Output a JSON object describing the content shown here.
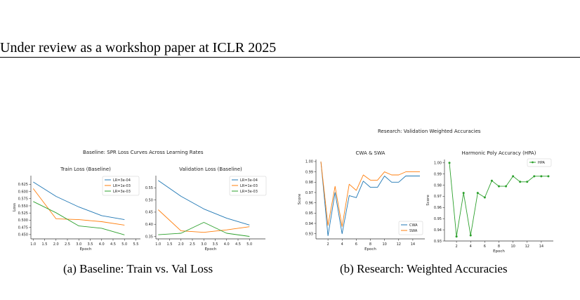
{
  "header": {
    "title": "Under review as a workshop paper at ICLR 2025"
  },
  "figures": {
    "a": {
      "suptitle": "Baseline: SPR Loss Curves Across Learning Rates",
      "caption": "(a)  Baseline: Train vs. Val Loss"
    },
    "b": {
      "suptitle": "Research: Validation Weighted Accuracies",
      "caption": "(b)  Research: Weighted Accuracies"
    }
  },
  "chart_data": [
    {
      "id": "train-loss",
      "type": "line",
      "title": "Train Loss (Baseline)",
      "xlabel": "Epoch",
      "ylabel": "Loss",
      "xlim": [
        0.9,
        5.7
      ],
      "ylim": [
        0.435,
        0.655
      ],
      "xticks": [
        1.0,
        1.5,
        2.0,
        2.5,
        3.0,
        3.5,
        4.0,
        4.5,
        5.0,
        5.5
      ],
      "xtick_labels": [
        "1.0",
        "1.5",
        "2.0",
        "2.5",
        "3.0",
        "3.5",
        "4.0",
        "4.5",
        "5.0",
        "5.5"
      ],
      "yticks": [
        0.45,
        0.475,
        0.5,
        0.525,
        0.55,
        0.575,
        0.6,
        0.625
      ],
      "ytick_labels": [
        "0.450",
        "0.475",
        "0.500",
        "0.525",
        "0.550",
        "0.575",
        "0.600",
        "0.625"
      ],
      "legend": "top-right",
      "grid": false,
      "series": [
        {
          "name": "LR=3e-04",
          "color": "#1f77b4",
          "x": [
            1,
            2,
            3,
            4,
            5
          ],
          "y": [
            0.633,
            0.583,
            0.546,
            0.516,
            0.502
          ]
        },
        {
          "name": "LR=1e-03",
          "color": "#ff7f0e",
          "x": [
            1,
            2,
            3,
            4,
            5
          ],
          "y": [
            0.61,
            0.505,
            0.502,
            0.495,
            0.483
          ]
        },
        {
          "name": "LR=3e-03",
          "color": "#2ca02c",
          "x": [
            1,
            2,
            3,
            4,
            5
          ],
          "y": [
            0.565,
            0.526,
            0.48,
            0.472,
            0.449
          ]
        }
      ]
    },
    {
      "id": "val-loss",
      "type": "line",
      "title": "Validation Loss (Baseline)",
      "xlabel": "Epoch",
      "ylabel": "Loss",
      "xlim": [
        0.9,
        5.7
      ],
      "ylim": [
        0.34,
        0.6
      ],
      "xticks": [
        1.0,
        1.5,
        2.0,
        2.5,
        3.0,
        3.5,
        4.0,
        4.5,
        5.0
      ],
      "xtick_labels": [
        "1.0",
        "1.5",
        "2.0",
        "2.5",
        "3.0",
        "3.5",
        "4.0",
        "4.5",
        "5.0"
      ],
      "yticks": [
        0.35,
        0.4,
        0.45,
        0.5,
        0.55
      ],
      "ytick_labels": [
        "0.35",
        "0.40",
        "0.45",
        "0.50",
        "0.55"
      ],
      "legend": "top-right",
      "grid": false,
      "series": [
        {
          "name": "LR=3e-04",
          "color": "#1f77b4",
          "x": [
            1,
            2,
            3,
            4,
            5
          ],
          "y": [
            0.58,
            0.515,
            0.463,
            0.425,
            0.397
          ]
        },
        {
          "name": "LR=1e-03",
          "color": "#ff7f0e",
          "x": [
            1,
            2,
            3,
            4,
            5
          ],
          "y": [
            0.46,
            0.373,
            0.367,
            0.377,
            0.39
          ]
        },
        {
          "name": "LR=3e-03",
          "color": "#2ca02c",
          "x": [
            1,
            2,
            3,
            4,
            5
          ],
          "y": [
            0.357,
            0.363,
            0.408,
            0.363,
            0.35
          ]
        }
      ]
    },
    {
      "id": "cwa-swa",
      "type": "line",
      "title": "CWA & SWA",
      "xlabel": "Epoch",
      "ylabel": "Score",
      "xlim": [
        0.3,
        15.7
      ],
      "ylim": [
        0.925,
        1.002
      ],
      "xticks": [
        2,
        4,
        6,
        8,
        10,
        12,
        14
      ],
      "xtick_labels": [
        "2",
        "4",
        "6",
        "8",
        "10",
        "12",
        "14"
      ],
      "yticks": [
        0.93,
        0.94,
        0.95,
        0.96,
        0.97,
        0.98,
        0.99,
        1.0
      ],
      "ytick_labels": [
        "0.93",
        "0.94",
        "0.95",
        "0.96",
        "0.97",
        "0.98",
        "0.99",
        "1.00"
      ],
      "legend": "bottom-right",
      "grid": false,
      "series": [
        {
          "name": "CWA",
          "color": "#1f77b4",
          "x": [
            1,
            2,
            3,
            4,
            5,
            6,
            7,
            8,
            9,
            10,
            11,
            12,
            13,
            14,
            15
          ],
          "y": [
            1.0,
            0.928,
            0.97,
            0.93,
            0.967,
            0.965,
            0.981,
            0.975,
            0.975,
            0.986,
            0.98,
            0.98,
            0.986,
            0.986,
            0.986
          ]
        },
        {
          "name": "SWA",
          "color": "#ff7f0e",
          "x": [
            1,
            2,
            3,
            4,
            5,
            6,
            7,
            8,
            9,
            10,
            11,
            12,
            13,
            14,
            15
          ],
          "y": [
            1.0,
            0.938,
            0.976,
            0.937,
            0.978,
            0.972,
            0.987,
            0.982,
            0.982,
            0.99,
            0.987,
            0.987,
            0.99,
            0.99,
            0.99
          ]
        }
      ]
    },
    {
      "id": "hpa",
      "type": "line",
      "title": "Harmonic Poly Accuracy (HPA)",
      "xlabel": "Epoch",
      "ylabel": "Score",
      "xlim": [
        0.3,
        15.7
      ],
      "ylim": [
        0.93,
        1.003
      ],
      "xticks": [
        2,
        4,
        6,
        8,
        10,
        12,
        14
      ],
      "xtick_labels": [
        "2",
        "4",
        "6",
        "8",
        "10",
        "12",
        "14"
      ],
      "yticks": [
        0.93,
        0.94,
        0.95,
        0.96,
        0.97,
        0.98,
        0.99,
        1.0
      ],
      "ytick_labels": [
        "0.93",
        "0.94",
        "0.95",
        "0.96",
        "0.97",
        "0.98",
        "0.99",
        "1.00"
      ],
      "legend": "top-right",
      "grid": false,
      "series": [
        {
          "name": "HPA",
          "color": "#2ca02c",
          "marker": "o",
          "x": [
            1,
            2,
            3,
            4,
            5,
            6,
            7,
            8,
            9,
            10,
            11,
            12,
            13,
            14,
            15
          ],
          "y": [
            1.0,
            0.934,
            0.973,
            0.935,
            0.973,
            0.969,
            0.984,
            0.979,
            0.979,
            0.988,
            0.983,
            0.983,
            0.988,
            0.988,
            0.988
          ]
        }
      ]
    }
  ]
}
